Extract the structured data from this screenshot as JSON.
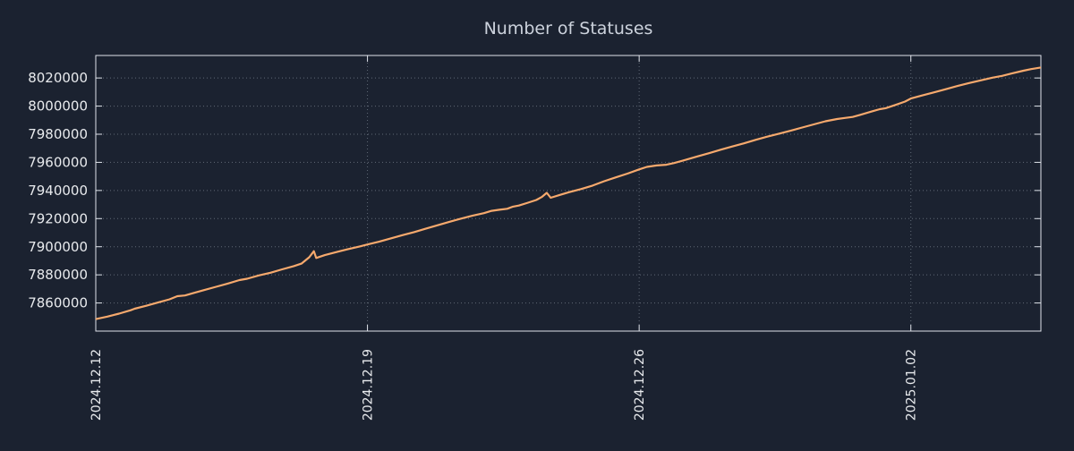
{
  "colors": {
    "background": "#1b2230",
    "line": "#f6a96d",
    "grid": "#9aa3b0",
    "axis": "#dfe3ea",
    "tick_text": "#e8eaed",
    "title_text": "#ccd2dc"
  },
  "chart_data": {
    "type": "line",
    "title": "Number of Statuses",
    "xlabel": "",
    "ylabel": "",
    "grid": true,
    "legend": "none",
    "xlim": [
      0,
      24.35
    ],
    "ylim": [
      7840000,
      8036000
    ],
    "x_ticks": [
      {
        "t": 0,
        "label": "2024.12.12"
      },
      {
        "t": 7,
        "label": "2024.12.19"
      },
      {
        "t": 14,
        "label": "2024.12.26"
      },
      {
        "t": 21,
        "label": "2025.01.02"
      }
    ],
    "y_ticks": [
      7860000,
      7880000,
      7900000,
      7920000,
      7940000,
      7960000,
      7980000,
      8000000,
      8020000
    ],
    "series": [
      {
        "name": "statuses",
        "x": [
          0,
          0.3,
          0.6,
          0.9,
          1.0,
          1.3,
          1.6,
          1.9,
          2.1,
          2.3,
          2.5,
          2.8,
          3.1,
          3.4,
          3.7,
          3.9,
          4.2,
          4.5,
          4.8,
          5.1,
          5.3,
          5.5,
          5.62,
          5.68,
          5.9,
          6.2,
          6.5,
          6.8,
          7.0,
          7.3,
          7.6,
          7.9,
          8.2,
          8.5,
          8.8,
          9.1,
          9.4,
          9.7,
          10.0,
          10.2,
          10.4,
          10.6,
          10.75,
          10.9,
          11.1,
          11.35,
          11.5,
          11.62,
          11.72,
          11.95,
          12.2,
          12.5,
          12.8,
          13.1,
          13.4,
          13.7,
          14.0,
          14.2,
          14.45,
          14.7,
          14.9,
          15.2,
          15.5,
          15.8,
          16.1,
          16.4,
          16.7,
          17.0,
          17.3,
          17.6,
          17.9,
          18.2,
          18.5,
          18.8,
          19.1,
          19.3,
          19.5,
          19.7,
          20.0,
          20.2,
          20.35,
          20.6,
          20.85,
          21.0,
          21.3,
          21.6,
          21.9,
          22.2,
          22.5,
          22.8,
          23.1,
          23.35,
          23.6,
          23.9,
          24.1,
          24.35
        ],
        "y": [
          7848500,
          7850300,
          7852400,
          7854800,
          7855900,
          7858000,
          7860300,
          7862600,
          7864800,
          7865300,
          7866900,
          7869200,
          7871500,
          7873800,
          7876300,
          7877200,
          7879600,
          7881500,
          7883900,
          7886200,
          7888000,
          7892500,
          7896800,
          7892000,
          7894000,
          7896200,
          7898300,
          7900200,
          7901600,
          7903600,
          7905900,
          7908200,
          7910400,
          7912800,
          7915200,
          7917600,
          7919900,
          7922000,
          7923900,
          7925500,
          7926300,
          7927000,
          7928500,
          7929300,
          7931000,
          7933200,
          7935500,
          7938300,
          7934800,
          7936800,
          7938800,
          7941000,
          7943500,
          7946600,
          7949300,
          7952000,
          7955000,
          7956800,
          7957800,
          7958300,
          7959500,
          7961800,
          7964200,
          7966500,
          7969000,
          7971300,
          7973500,
          7976000,
          7978300,
          7980400,
          7982500,
          7984800,
          7987000,
          7989200,
          7990800,
          7991600,
          7992300,
          7993800,
          7996300,
          7997800,
          7998500,
          8000800,
          8003200,
          8005400,
          8007600,
          8009800,
          8012000,
          8014300,
          8016400,
          8018300,
          8020200,
          8021500,
          8023200,
          8025200,
          8026300,
          8027500
        ]
      }
    ]
  }
}
